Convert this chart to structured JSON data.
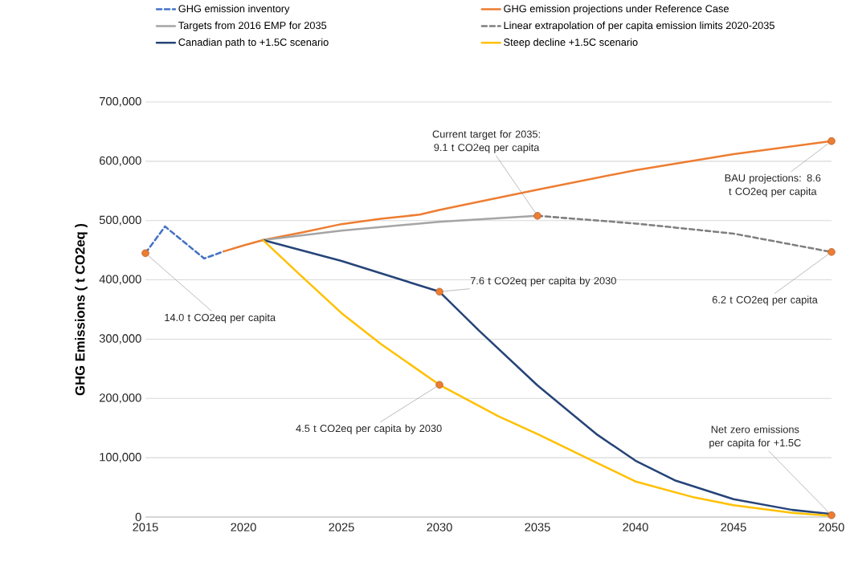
{
  "chart_data": {
    "type": "line",
    "ylabel": "GHG Emissions ( t CO2eq )",
    "xlim": [
      2015,
      2050
    ],
    "xticks": [
      2015,
      2020,
      2025,
      2030,
      2035,
      2040,
      2045,
      2050
    ],
    "ylim": [
      0,
      700000
    ],
    "yticks": [
      {
        "value": 0,
        "label": "0"
      },
      {
        "value": 100000,
        "label": "100,000"
      },
      {
        "value": 200000,
        "label": "200,000"
      },
      {
        "value": 300000,
        "label": "300,000"
      },
      {
        "value": 400000,
        "label": "400,000"
      },
      {
        "value": 500000,
        "label": "500,000"
      },
      {
        "value": 600000,
        "label": "600,000"
      },
      {
        "value": 700000,
        "label": "700,000"
      }
    ],
    "grid": "y",
    "legend": "top",
    "marker": "none",
    "series": [
      {
        "name": "GHG emission inventory",
        "color": "#4472c4",
        "line_style": "dashed",
        "x": [
          2015,
          2016,
          2017,
          2018,
          2019
        ],
        "values": [
          445000,
          490000,
          463000,
          436000,
          448000
        ]
      },
      {
        "name": "GHG emission projections under Reference Case",
        "color": "#ed7d31",
        "line_style": "solid",
        "x": [
          2019,
          2020,
          2021,
          2023,
          2025,
          2027,
          2029,
          2030,
          2035,
          2040,
          2045,
          2050
        ],
        "values": [
          448000,
          458000,
          467000,
          480000,
          494000,
          503000,
          510000,
          518000,
          552000,
          585000,
          612000,
          634000
        ]
      },
      {
        "name": "Targets from 2016 EMP for 2035",
        "color": "#a5a5a5",
        "line_style": "solid",
        "x": [
          2021,
          2025,
          2030,
          2035
        ],
        "values": [
          467000,
          483000,
          498000,
          508000
        ]
      },
      {
        "name": "Linear extrapolation of per capita emission limits 2020-2035",
        "color": "#7f7f7f",
        "line_style": "dashed",
        "x": [
          2035,
          2040,
          2045,
          2050
        ],
        "values": [
          508000,
          495000,
          478000,
          447000
        ]
      },
      {
        "name": "Canadian path to +1.5C scenario",
        "color": "#264478",
        "line_style": "solid",
        "x": [
          2021,
          2025,
          2030,
          2032,
          2035,
          2038,
          2040,
          2042,
          2045,
          2048,
          2050
        ],
        "values": [
          467000,
          432000,
          380000,
          315000,
          222000,
          140000,
          95000,
          62000,
          30000,
          12000,
          5000
        ]
      },
      {
        "name": "Steep decline +1.5C scenario",
        "color": "#ffc000",
        "line_style": "solid",
        "x": [
          2021,
          2023,
          2025,
          2027,
          2030,
          2033,
          2035,
          2038,
          2040,
          2043,
          2045,
          2048,
          2050
        ],
        "values": [
          467000,
          405000,
          344000,
          292000,
          223000,
          170000,
          140000,
          92000,
          60000,
          33000,
          20000,
          7000,
          2000
        ]
      },
      {
        "type": "scatter",
        "color": "#ed7d31",
        "marker": "circle",
        "x": [
          2015,
          2030,
          2030,
          2035,
          2050,
          2050,
          2050
        ],
        "values": [
          445000,
          380000,
          223000,
          508000,
          634000,
          447000,
          3000
        ]
      }
    ],
    "annotations": [
      {
        "text": "14.0 t CO2eq per capita",
        "x": 2015,
        "y": 445000
      },
      {
        "text": "Current target for 2035: 9.1 t CO2eq per capita",
        "x": 2035,
        "y": 508000
      },
      {
        "text": "BAU projections: 8.6 t CO2eq per capita",
        "x": 2050,
        "y": 634000
      },
      {
        "text": "6.2 t CO2eq per capita",
        "x": 2050,
        "y": 447000
      },
      {
        "text": "7.6 t CO2eq per capita by 2030",
        "x": 2030,
        "y": 380000
      },
      {
        "text": "4.5 t CO2eq per capita by 2030",
        "x": 2030,
        "y": 223000
      },
      {
        "text": "Net zero  emissions per capita for +1.5C",
        "x": 2050,
        "y": 3000
      }
    ]
  }
}
